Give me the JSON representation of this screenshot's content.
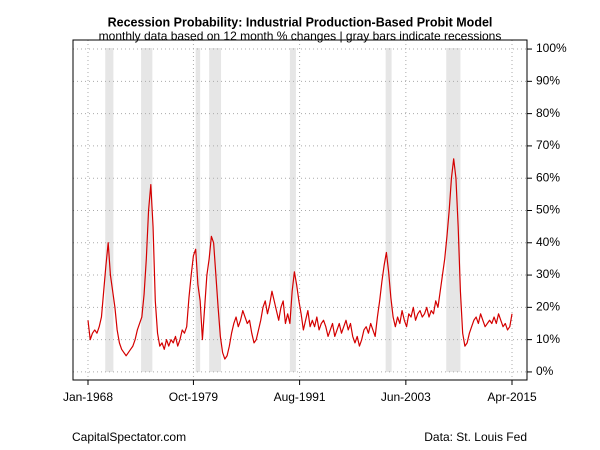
{
  "chart_data": {
    "type": "line",
    "title": "Recession Probability: Industrial Production-Based Probit Model",
    "subtitle": "monthly data based on 12 month % changes | gray bars indicate recessions",
    "source_left": "CapitalSpectator.com",
    "source_right": "Data: St. Louis Fed",
    "color": "#d40000",
    "recession_color": "#e6e6e6",
    "grid": true,
    "xlim": [
      1966.33,
      2016.92
    ],
    "ylim": [
      -2.5,
      102.8
    ],
    "xticks": [
      {
        "value": 1968.0,
        "label": "Jan-1968"
      },
      {
        "value": 1979.75,
        "label": "Oct-1979"
      },
      {
        "value": 1991.58,
        "label": "Aug-1991"
      },
      {
        "value": 2003.42,
        "label": "Jun-2003"
      },
      {
        "value": 2015.25,
        "label": "Apr-2015"
      }
    ],
    "yticks": [
      {
        "value": 0,
        "label": "0%"
      },
      {
        "value": 10,
        "label": "10%"
      },
      {
        "value": 20,
        "label": "20%"
      },
      {
        "value": 30,
        "label": "30%"
      },
      {
        "value": 40,
        "label": "40%"
      },
      {
        "value": 50,
        "label": "50%"
      },
      {
        "value": 60,
        "label": "60%"
      },
      {
        "value": 70,
        "label": "70%"
      },
      {
        "value": 80,
        "label": "80%"
      },
      {
        "value": 90,
        "label": "90%"
      },
      {
        "value": 100,
        "label": "100%"
      }
    ],
    "recessions": [
      [
        1969.92,
        1970.83
      ],
      [
        1973.92,
        1975.17
      ],
      [
        1980.0,
        1980.5
      ],
      [
        1981.5,
        1982.83
      ],
      [
        1990.5,
        1991.17
      ],
      [
        2001.17,
        2001.83
      ],
      [
        2007.92,
        2009.5
      ]
    ],
    "x": [
      1968.0,
      1968.25,
      1968.5,
      1968.75,
      1969.0,
      1969.25,
      1969.5,
      1969.75,
      1970.0,
      1970.25,
      1970.5,
      1970.75,
      1971.0,
      1971.25,
      1971.5,
      1971.75,
      1972.0,
      1972.25,
      1972.5,
      1972.75,
      1973.0,
      1973.25,
      1973.5,
      1973.75,
      1974.0,
      1974.25,
      1974.5,
      1974.75,
      1975.0,
      1975.25,
      1975.5,
      1975.75,
      1976.0,
      1976.25,
      1976.5,
      1976.75,
      1977.0,
      1977.25,
      1977.5,
      1977.75,
      1978.0,
      1978.25,
      1978.5,
      1978.75,
      1979.0,
      1979.25,
      1979.5,
      1979.75,
      1980.0,
      1980.25,
      1980.5,
      1980.75,
      1981.0,
      1981.25,
      1981.5,
      1981.75,
      1982.0,
      1982.25,
      1982.5,
      1982.75,
      1983.0,
      1983.25,
      1983.5,
      1983.75,
      1984.0,
      1984.25,
      1984.5,
      1984.75,
      1985.0,
      1985.25,
      1985.5,
      1985.75,
      1986.0,
      1986.25,
      1986.5,
      1986.75,
      1987.0,
      1987.25,
      1987.5,
      1987.75,
      1988.0,
      1988.25,
      1988.5,
      1988.75,
      1989.0,
      1989.25,
      1989.5,
      1989.75,
      1990.0,
      1990.25,
      1990.5,
      1990.75,
      1991.0,
      1991.25,
      1991.5,
      1991.75,
      1992.0,
      1992.25,
      1992.5,
      1992.75,
      1993.0,
      1993.25,
      1993.5,
      1993.75,
      1994.0,
      1994.25,
      1994.5,
      1994.75,
      1995.0,
      1995.25,
      1995.5,
      1995.75,
      1996.0,
      1996.25,
      1996.5,
      1996.75,
      1997.0,
      1997.25,
      1997.5,
      1997.75,
      1998.0,
      1998.25,
      1998.5,
      1998.75,
      1999.0,
      1999.25,
      1999.5,
      1999.75,
      2000.0,
      2000.25,
      2000.5,
      2000.75,
      2001.0,
      2001.25,
      2001.5,
      2001.75,
      2002.0,
      2002.25,
      2002.5,
      2002.75,
      2003.0,
      2003.25,
      2003.5,
      2003.75,
      2004.0,
      2004.25,
      2004.5,
      2004.75,
      2005.0,
      2005.25,
      2005.5,
      2005.75,
      2006.0,
      2006.25,
      2006.5,
      2006.75,
      2007.0,
      2007.25,
      2007.5,
      2007.75,
      2008.0,
      2008.25,
      2008.5,
      2008.75,
      2009.0,
      2009.25,
      2009.5,
      2009.75,
      2010.0,
      2010.25,
      2010.5,
      2010.75,
      2011.0,
      2011.25,
      2011.5,
      2011.75,
      2012.0,
      2012.25,
      2012.5,
      2012.75,
      2013.0,
      2013.25,
      2013.5,
      2013.75,
      2014.0,
      2014.25,
      2014.5,
      2014.75,
      2015.0,
      2015.25
    ],
    "values": [
      16,
      10,
      12,
      13,
      12,
      14,
      17,
      25,
      33,
      40,
      30,
      25,
      20,
      13,
      9,
      7,
      6,
      5,
      6,
      7,
      8,
      10,
      13,
      15,
      17,
      24,
      35,
      50,
      58,
      45,
      22,
      12,
      8,
      9,
      7,
      10,
      8,
      10,
      9,
      11,
      8,
      10,
      13,
      12,
      14,
      23,
      30,
      36,
      38,
      27,
      22,
      10,
      20,
      30,
      35,
      42,
      40,
      30,
      20,
      11,
      6,
      4,
      5,
      8,
      12,
      15,
      17,
      14,
      16,
      19,
      17,
      15,
      16,
      12,
      9,
      10,
      13,
      16,
      20,
      22,
      18,
      21,
      25,
      22,
      19,
      16,
      20,
      22,
      15,
      18,
      15,
      25,
      31,
      27,
      22,
      18,
      13,
      16,
      19,
      14,
      16,
      14,
      17,
      13,
      15,
      16,
      14,
      11,
      13,
      15,
      11,
      13,
      15,
      12,
      14,
      16,
      13,
      15,
      11,
      9,
      11,
      8,
      10,
      13,
      14,
      12,
      15,
      13,
      11,
      17,
      22,
      28,
      33,
      37,
      31,
      23,
      17,
      14,
      17,
      15,
      19,
      16,
      14,
      18,
      17,
      20,
      16,
      18,
      19,
      17,
      18,
      20,
      17,
      19,
      18,
      22,
      20,
      25,
      30,
      35,
      42,
      50,
      60,
      66,
      60,
      45,
      25,
      12,
      8,
      9,
      12,
      14,
      16,
      17,
      15,
      18,
      16,
      14,
      15,
      16,
      15,
      17,
      15,
      18,
      16,
      14,
      15,
      13,
      14,
      18
    ]
  }
}
